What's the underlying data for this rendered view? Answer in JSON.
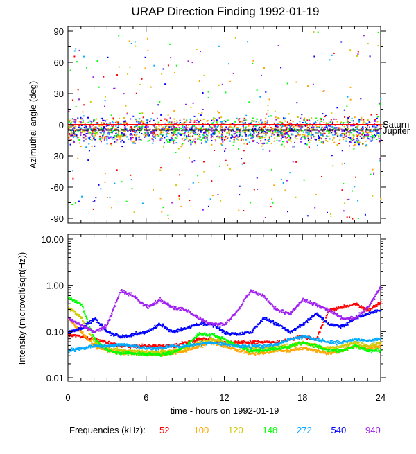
{
  "chart_data": [
    {
      "type": "scatter",
      "title": "URAP Direction Finding  1992-01-19",
      "ylabel": "Azimuthal angle (deg)",
      "ylim": [
        -90,
        90
      ],
      "xlim": [
        0,
        24
      ],
      "yticks": [
        "90",
        "60",
        "30",
        "0",
        "-30",
        "-60",
        "-90"
      ],
      "reference_lines": [
        {
          "name": "Saturn",
          "value": 0,
          "color": "#ff0000"
        },
        {
          "name": "Jupiter",
          "value": -5,
          "color": "#000000"
        }
      ],
      "series_azimuth_center_deg": -5
    },
    {
      "type": "scatter",
      "ylabel": "Intensity (microvolt/sqrt(Hz))",
      "yscale": "log",
      "ylim": [
        0.01,
        10
      ],
      "yticks": [
        "10.00",
        "1.00",
        "0.10",
        "0.01"
      ],
      "xlabel": "time - hours on 1992-01-19",
      "xlim": [
        0,
        24
      ],
      "xticks": [
        "0",
        "6",
        "12",
        "18",
        "24"
      ],
      "x_hours": [
        0,
        1,
        2,
        3,
        4,
        5,
        6,
        7,
        8,
        9,
        10,
        11,
        12,
        13,
        14,
        15,
        16,
        17,
        18,
        19,
        20,
        21,
        22,
        23,
        24
      ],
      "legend_title": "Frequencies (kHz):",
      "series": [
        {
          "name": "52",
          "color": "#ff0000",
          "values": [
            0.09,
            0.08,
            0.07,
            0.06,
            0.05,
            0.05,
            0.05,
            0.05,
            0.05,
            0.06,
            0.07,
            0.07,
            0.06,
            0.06,
            0.06,
            0.06,
            0.06,
            0.07,
            0.08,
            0.07,
            0.3,
            0.35,
            0.4,
            0.3,
            0.45
          ]
        },
        {
          "name": "100",
          "color": "#ffa500",
          "values": [
            0.2,
            0.1,
            0.05,
            0.04,
            0.035,
            0.035,
            0.033,
            0.033,
            0.035,
            0.04,
            0.05,
            0.06,
            0.05,
            0.04,
            0.035,
            0.035,
            0.04,
            0.04,
            0.045,
            0.04,
            0.035,
            0.04,
            0.05,
            0.045,
            0.05
          ]
        },
        {
          "name": "120",
          "color": "#d0c800",
          "values": [
            0.35,
            0.2,
            0.06,
            0.045,
            0.04,
            0.04,
            0.038,
            0.038,
            0.04,
            0.045,
            0.06,
            0.07,
            0.06,
            0.05,
            0.045,
            0.045,
            0.05,
            0.05,
            0.06,
            0.05,
            0.045,
            0.05,
            0.06,
            0.05,
            0.06
          ]
        },
        {
          "name": "148",
          "color": "#00ff00",
          "values": [
            0.55,
            0.4,
            0.07,
            0.04,
            0.035,
            0.035,
            0.033,
            0.033,
            0.036,
            0.05,
            0.09,
            0.09,
            0.07,
            0.05,
            0.04,
            0.04,
            0.045,
            0.05,
            0.06,
            0.05,
            0.04,
            0.04,
            0.05,
            0.04,
            0.04
          ]
        },
        {
          "name": "272",
          "color": "#00aaff",
          "values": [
            0.04,
            0.045,
            0.05,
            0.05,
            0.055,
            0.05,
            0.045,
            0.045,
            0.05,
            0.05,
            0.055,
            0.06,
            0.055,
            0.05,
            0.05,
            0.05,
            0.055,
            0.07,
            0.08,
            0.07,
            0.06,
            0.06,
            0.07,
            0.065,
            0.07
          ]
        },
        {
          "name": "540",
          "color": "#0000ff",
          "values": [
            0.1,
            0.12,
            0.2,
            0.1,
            0.08,
            0.09,
            0.1,
            0.15,
            0.1,
            0.12,
            0.15,
            0.15,
            0.1,
            0.09,
            0.1,
            0.2,
            0.15,
            0.1,
            0.15,
            0.25,
            0.15,
            0.13,
            0.2,
            0.25,
            0.3
          ]
        },
        {
          "name": "940",
          "color": "#a020f0",
          "values": [
            0.2,
            0.14,
            0.1,
            0.15,
            0.8,
            0.6,
            0.35,
            0.5,
            0.35,
            0.3,
            0.2,
            0.15,
            0.15,
            0.3,
            0.8,
            0.6,
            0.3,
            0.25,
            0.5,
            0.4,
            0.3,
            0.2,
            0.2,
            0.35,
            1.0
          ]
        }
      ]
    }
  ]
}
